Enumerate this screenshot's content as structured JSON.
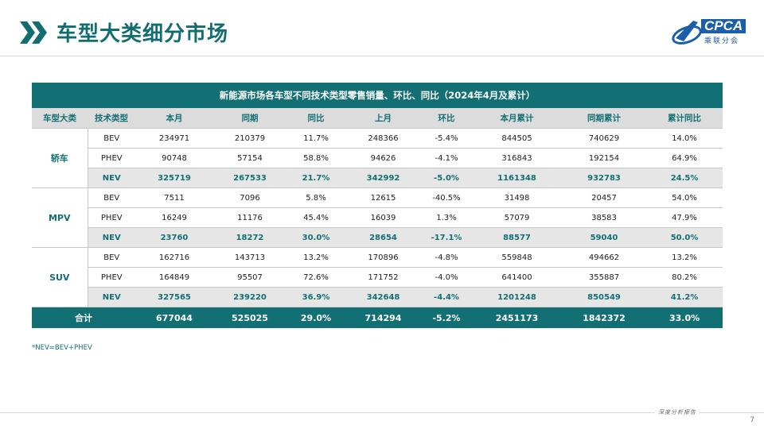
{
  "page": {
    "title": "车型大类细分市场",
    "page_number": "7",
    "footer_text": "深度分析报告",
    "note": "*NEV=BEV+PHEV"
  },
  "logo": {
    "text": "CPCA",
    "subtext": "乘联分会",
    "brand_color": "#1b5fa8"
  },
  "colors": {
    "accent": "#127075",
    "row_highlight": "#e6e6e6"
  },
  "table": {
    "title": "新能源市场各车型不同技术类型零售销量、环比、同比（2024年4月及累计）",
    "headers": [
      "车型大类",
      "技术类型",
      "本月",
      "同期",
      "同比",
      "上月",
      "环比",
      "本月累计",
      "同期累计",
      "累计同比"
    ],
    "groups": [
      {
        "name": "轿车",
        "rows": [
          [
            "BEV",
            "234971",
            "210379",
            "11.7%",
            "248366",
            "-5.4%",
            "844505",
            "740629",
            "14.0%"
          ],
          [
            "PHEV",
            "90748",
            "57154",
            "58.8%",
            "94626",
            "-4.1%",
            "316843",
            "192154",
            "64.9%"
          ],
          [
            "NEV",
            "325719",
            "267533",
            "21.7%",
            "342992",
            "-5.0%",
            "1161348",
            "932783",
            "24.5%"
          ]
        ]
      },
      {
        "name": "MPV",
        "rows": [
          [
            "BEV",
            "7511",
            "7096",
            "5.8%",
            "12615",
            "-40.5%",
            "31498",
            "20457",
            "54.0%"
          ],
          [
            "PHEV",
            "16249",
            "11176",
            "45.4%",
            "16039",
            "1.3%",
            "57079",
            "38583",
            "47.9%"
          ],
          [
            "NEV",
            "23760",
            "18272",
            "30.0%",
            "28654",
            "-17.1%",
            "88577",
            "59040",
            "50.0%"
          ]
        ]
      },
      {
        "name": "SUV",
        "rows": [
          [
            "BEV",
            "162716",
            "143713",
            "13.2%",
            "170896",
            "-4.8%",
            "559848",
            "494662",
            "13.2%"
          ],
          [
            "PHEV",
            "164849",
            "95507",
            "72.6%",
            "171752",
            "-4.0%",
            "641400",
            "355887",
            "80.2%"
          ],
          [
            "NEV",
            "327565",
            "239220",
            "36.9%",
            "342648",
            "-4.4%",
            "1201248",
            "850549",
            "41.2%"
          ]
        ]
      }
    ],
    "total": [
      "合计",
      "677044",
      "525025",
      "29.0%",
      "714294",
      "-5.2%",
      "2451173",
      "1842372",
      "33.0%"
    ]
  }
}
